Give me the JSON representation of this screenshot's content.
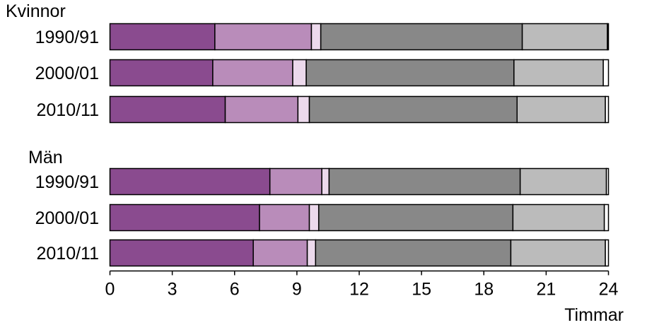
{
  "chart_data": {
    "type": "bar",
    "orientation": "horizontal",
    "stacked": true,
    "xlabel": "Timmar",
    "xlim": [
      0,
      24
    ],
    "xticks": [
      0,
      3,
      6,
      9,
      12,
      15,
      18,
      21,
      24
    ],
    "grid": false,
    "legend": "none",
    "groups": [
      {
        "label": "Kvinnor",
        "rows": [
          {
            "label": "1990/91",
            "values": [
              5.05,
              4.65,
              0.45,
              9.7,
              4.1,
              0.05
            ]
          },
          {
            "label": "2000/01",
            "values": [
              4.95,
              3.85,
              0.65,
              10.0,
              4.3,
              0.25
            ]
          },
          {
            "label": "2010/11",
            "values": [
              5.55,
              3.5,
              0.55,
              10.0,
              4.25,
              0.15
            ]
          }
        ]
      },
      {
        "label": "Män",
        "rows": [
          {
            "label": "1990/91",
            "values": [
              7.7,
              2.5,
              0.35,
              9.2,
              4.15,
              0.1
            ]
          },
          {
            "label": "2000/01",
            "values": [
              7.2,
              2.4,
              0.45,
              9.35,
              4.4,
              0.2
            ]
          },
          {
            "label": "2010/11",
            "values": [
              6.9,
              2.6,
              0.4,
              9.4,
              4.55,
              0.15
            ]
          }
        ]
      }
    ],
    "segment_colors": [
      "#8a4b8f",
      "#b98cba",
      "#ecd9ec",
      "#888888",
      "#bbbbbb",
      "#ffffff"
    ]
  }
}
